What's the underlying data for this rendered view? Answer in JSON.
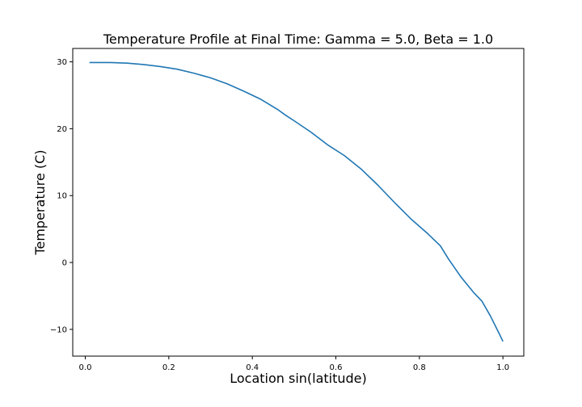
{
  "chart_data": {
    "type": "line",
    "title": "Temperature Profile at Final Time: Gamma = 5.0, Beta = 1.0",
    "xlabel": "Location sin(latitude)",
    "ylabel": "Temperature (C)",
    "xlim": [
      -0.03,
      1.05
    ],
    "ylim": [
      -14,
      32
    ],
    "xticks": [
      0.0,
      0.2,
      0.4,
      0.6,
      0.8,
      1.0
    ],
    "xtick_labels": [
      "0.0",
      "0.2",
      "0.4",
      "0.6",
      "0.8",
      "1.0"
    ],
    "yticks": [
      -10,
      0,
      10,
      20,
      30
    ],
    "ytick_labels": [
      "−10",
      "0",
      "10",
      "20",
      "30"
    ],
    "grid": false,
    "line_color": "#1f77b4",
    "series": [
      {
        "x": [
          0.01,
          0.06,
          0.1,
          0.14,
          0.18,
          0.22,
          0.26,
          0.3,
          0.34,
          0.38,
          0.42,
          0.46,
          0.48,
          0.5,
          0.54,
          0.58,
          0.62,
          0.66,
          0.7,
          0.74,
          0.78,
          0.82,
          0.85,
          0.87,
          0.9,
          0.93,
          0.95,
          0.97,
          0.99,
          1.0
        ],
        "y": [
          29.9,
          29.9,
          29.8,
          29.6,
          29.3,
          28.9,
          28.3,
          27.6,
          26.7,
          25.6,
          24.4,
          22.9,
          22.0,
          21.2,
          19.5,
          17.6,
          16.0,
          14.0,
          11.6,
          9.0,
          6.5,
          4.3,
          2.5,
          0.5,
          -2.2,
          -4.5,
          -5.8,
          -8.0,
          -10.5,
          -11.8
        ]
      }
    ]
  }
}
